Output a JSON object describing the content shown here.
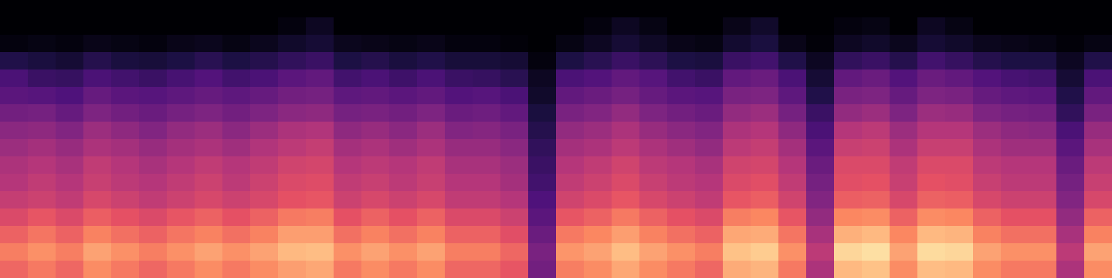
{
  "chart_data": {
    "type": "heatmap",
    "zlim": [
      0,
      100
    ],
    "cells": [
      [
        0,
        0,
        0,
        0,
        0,
        0,
        0,
        0,
        0,
        0,
        0,
        0,
        0,
        0,
        0,
        0,
        0,
        0,
        0,
        0,
        0,
        0,
        0,
        0,
        0,
        0,
        0,
        0,
        0,
        0,
        0,
        0,
        0,
        0,
        0,
        0,
        0,
        0,
        0,
        0
      ],
      [
        0,
        0,
        0,
        0,
        0,
        0,
        0,
        0,
        0,
        0,
        2,
        6,
        0,
        0,
        0,
        0,
        0,
        0,
        0,
        0,
        0,
        2,
        6,
        3,
        0,
        0,
        4,
        8,
        0,
        0,
        2,
        3,
        0,
        6,
        3,
        0,
        0,
        0,
        0,
        0
      ],
      [
        2,
        3,
        2,
        4,
        3,
        2,
        4,
        5,
        3,
        5,
        8,
        10,
        5,
        4,
        3,
        4,
        2,
        2,
        1,
        0,
        3,
        6,
        10,
        7,
        4,
        3,
        9,
        12,
        4,
        1,
        6,
        8,
        5,
        10,
        8,
        5,
        4,
        3,
        1,
        3
      ],
      [
        14,
        12,
        10,
        15,
        12,
        11,
        13,
        16,
        13,
        15,
        18,
        20,
        13,
        15,
        12,
        14,
        11,
        11,
        10,
        2,
        13,
        16,
        20,
        17,
        13,
        12,
        20,
        22,
        14,
        6,
        18,
        20,
        15,
        22,
        19,
        15,
        13,
        13,
        6,
        14
      ],
      [
        24,
        20,
        19,
        24,
        22,
        20,
        23,
        26,
        22,
        24,
        28,
        30,
        22,
        24,
        21,
        24,
        20,
        19,
        16,
        6,
        24,
        26,
        30,
        27,
        22,
        20,
        30,
        32,
        24,
        10,
        30,
        32,
        26,
        32,
        30,
        26,
        23,
        22,
        10,
        24
      ],
      [
        28,
        27,
        25,
        31,
        28,
        27,
        29,
        31,
        29,
        31,
        34,
        35,
        29,
        30,
        28,
        30,
        26,
        27,
        24,
        8,
        30,
        32,
        35,
        31,
        28,
        27,
        36,
        37,
        29,
        14,
        36,
        37,
        31,
        37,
        36,
        31,
        29,
        28,
        14,
        30
      ],
      [
        34,
        35,
        31,
        37,
        34,
        32,
        35,
        37,
        34,
        37,
        40,
        41,
        35,
        36,
        34,
        37,
        32,
        33,
        30,
        12,
        36,
        38,
        42,
        37,
        34,
        32,
        42,
        44,
        35,
        20,
        42,
        44,
        37,
        44,
        43,
        37,
        35,
        34,
        18,
        36
      ],
      [
        40,
        41,
        38,
        44,
        41,
        38,
        42,
        44,
        40,
        44,
        48,
        49,
        41,
        43,
        40,
        44,
        38,
        39,
        36,
        15,
        42,
        44,
        48,
        43,
        40,
        38,
        48,
        50,
        41,
        24,
        50,
        52,
        44,
        50,
        50,
        44,
        41,
        40,
        24,
        43
      ],
      [
        44,
        46,
        43,
        48,
        46,
        43,
        46,
        48,
        45,
        49,
        52,
        54,
        46,
        48,
        45,
        48,
        43,
        43,
        40,
        18,
        46,
        48,
        52,
        48,
        45,
        42,
        52,
        54,
        46,
        28,
        55,
        56,
        48,
        55,
        55,
        48,
        45,
        45,
        28,
        47
      ],
      [
        48,
        50,
        47,
        53,
        50,
        47,
        50,
        53,
        50,
        53,
        57,
        58,
        50,
        52,
        50,
        53,
        47,
        47,
        44,
        20,
        50,
        53,
        57,
        52,
        50,
        47,
        57,
        58,
        50,
        32,
        60,
        60,
        53,
        60,
        60,
        52,
        50,
        50,
        32,
        52
      ],
      [
        50,
        53,
        50,
        55,
        52,
        50,
        53,
        56,
        52,
        56,
        60,
        61,
        53,
        55,
        52,
        55,
        50,
        50,
        46,
        22,
        53,
        56,
        60,
        55,
        52,
        50,
        60,
        62,
        53,
        35,
        62,
        63,
        55,
        63,
        62,
        55,
        52,
        52,
        35,
        55
      ],
      [
        54,
        56,
        53,
        59,
        56,
        53,
        56,
        59,
        56,
        59,
        63,
        64,
        56,
        59,
        56,
        59,
        53,
        53,
        50,
        25,
        57,
        60,
        64,
        59,
        56,
        53,
        64,
        66,
        57,
        38,
        66,
        67,
        59,
        67,
        66,
        59,
        56,
        56,
        38,
        59
      ],
      [
        60,
        64,
        60,
        66,
        63,
        60,
        64,
        67,
        63,
        67,
        72,
        73,
        63,
        67,
        63,
        67,
        60,
        60,
        56,
        28,
        64,
        67,
        72,
        67,
        63,
        60,
        73,
        75,
        64,
        42,
        75,
        76,
        67,
        76,
        75,
        67,
        63,
        63,
        42,
        67
      ],
      [
        67,
        71,
        67,
        74,
        70,
        67,
        71,
        74,
        70,
        74,
        80,
        80,
        70,
        74,
        70,
        74,
        67,
        67,
        62,
        32,
        72,
        75,
        80,
        74,
        70,
        67,
        82,
        83,
        71,
        47,
        84,
        86,
        75,
        86,
        85,
        74,
        70,
        70,
        47,
        74
      ],
      [
        73,
        77,
        73,
        81,
        77,
        73,
        77,
        81,
        77,
        81,
        86,
        87,
        77,
        81,
        77,
        81,
        73,
        73,
        68,
        36,
        78,
        81,
        87,
        81,
        77,
        73,
        88,
        90,
        77,
        52,
        92,
        94,
        81,
        93,
        92,
        81,
        77,
        77,
        52,
        81
      ],
      [
        68,
        72,
        68,
        76,
        72,
        68,
        72,
        76,
        72,
        76,
        80,
        82,
        72,
        76,
        72,
        76,
        68,
        68,
        64,
        34,
        73,
        76,
        82,
        76,
        72,
        68,
        83,
        85,
        72,
        48,
        86,
        88,
        76,
        87,
        86,
        76,
        72,
        72,
        48,
        76
      ]
    ]
  }
}
